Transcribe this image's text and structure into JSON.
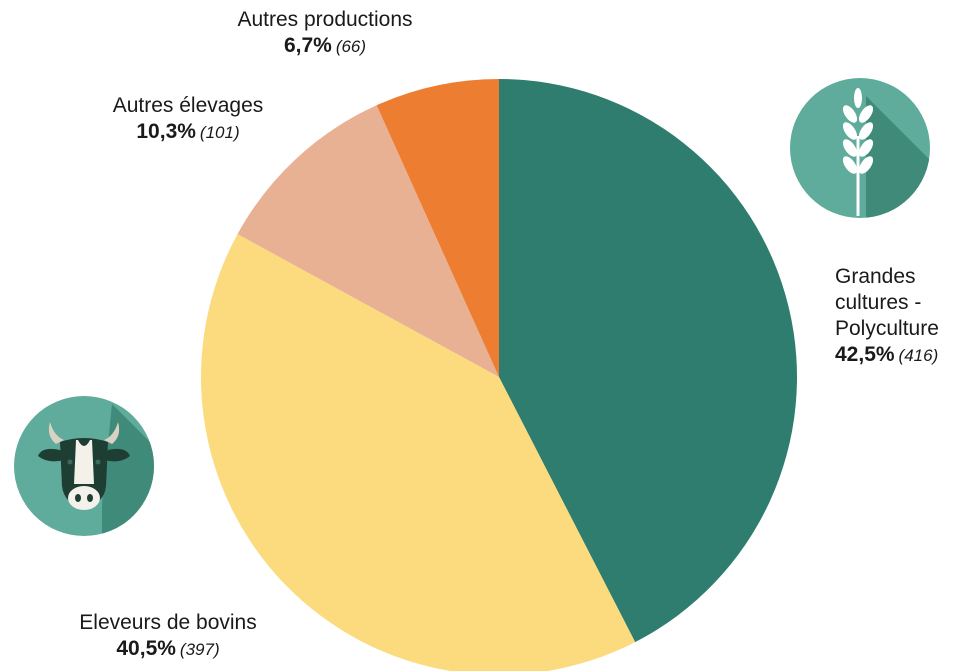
{
  "chart_data": {
    "type": "pie",
    "slices": [
      {
        "label_lines": [
          "Grandes",
          "cultures -",
          "Polyculture"
        ],
        "percent_text": "42,5%",
        "count_text": "(416)",
        "value": 416,
        "color": "#2e7d6e"
      },
      {
        "label_lines": [
          "Eleveurs de bovins"
        ],
        "percent_text": "40,5%",
        "count_text": "(397)",
        "value": 397,
        "color": "#fbdb7e"
      },
      {
        "label_lines": [
          "Autres élevages"
        ],
        "percent_text": "10,3%",
        "count_text": "(101)",
        "value": 101,
        "color": "#e8b193"
      },
      {
        "label_lines": [
          "Autres productions"
        ],
        "percent_text": "6,7%",
        "count_text": "(66)",
        "value": 66,
        "color": "#ed7d31"
      }
    ],
    "start_angle": "top",
    "direction": "clockwise",
    "legend": "none"
  },
  "icons": {
    "grandes_cultures": "wheat-icon",
    "bovins": "cow-icon",
    "icon_color": "#5fac9c",
    "icon_shadow_color": "#3f8a78"
  }
}
